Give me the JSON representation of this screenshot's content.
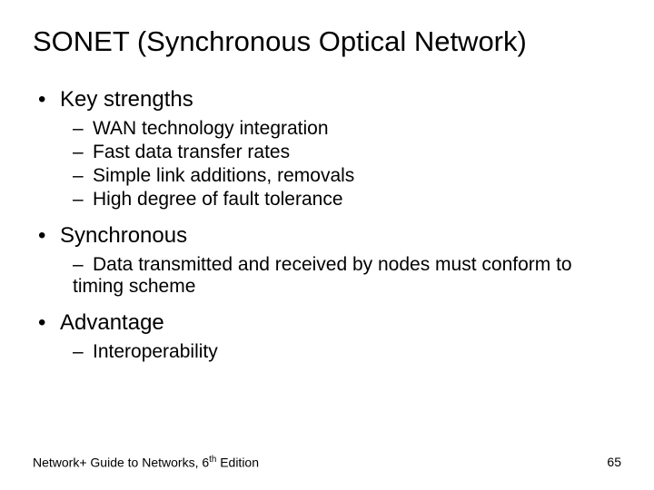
{
  "title": "SONET (Synchronous Optical Network)",
  "sections": [
    {
      "heading": "Key strengths",
      "items": [
        "WAN technology integration",
        "Fast data transfer rates",
        "Simple link additions, removals",
        "High degree of fault tolerance"
      ]
    },
    {
      "heading": "Synchronous",
      "items": [
        "Data transmitted and received by nodes must conform to timing scheme"
      ]
    },
    {
      "heading": "Advantage",
      "items": [
        "Interoperability"
      ]
    }
  ],
  "footer": {
    "left_pre": "Network+ Guide to Networks, 6",
    "left_sup": "th",
    "left_post": " Edition",
    "page": "65"
  },
  "style": {
    "background_color": "#ffffff",
    "text_color": "#000000",
    "title_fontsize": 31,
    "lvl1_fontsize": 24,
    "lvl2_fontsize": 21,
    "footer_fontsize": 14,
    "font_family": "Arial"
  }
}
